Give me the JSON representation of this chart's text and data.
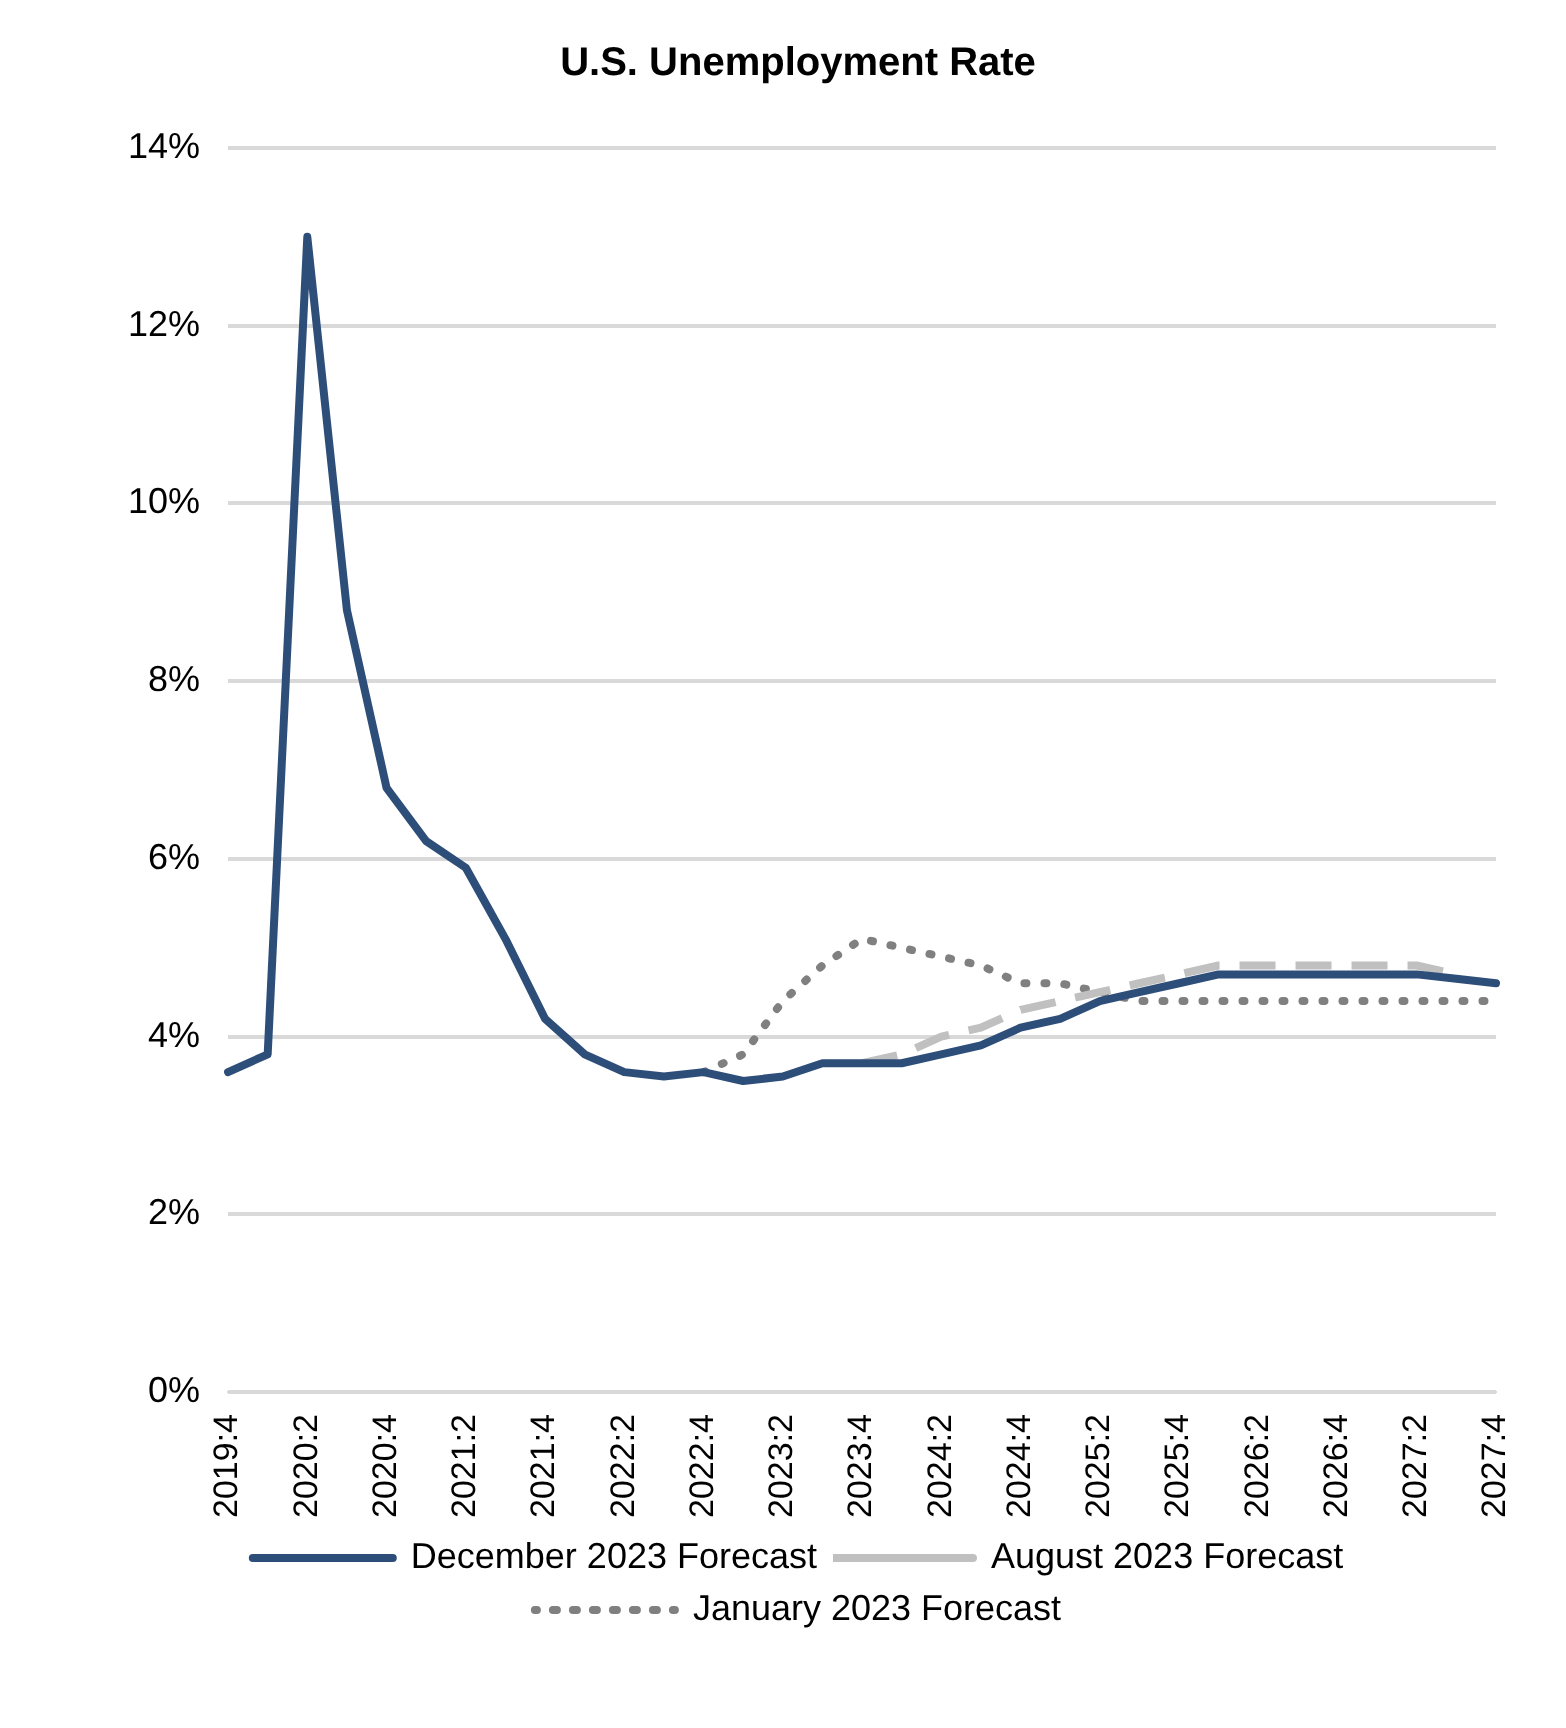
{
  "chart_data": {
    "type": "line",
    "title": "U.S. Unemployment Rate",
    "categories": [
      "2019:4",
      null,
      "2020:2",
      null,
      "2020:4",
      null,
      "2021:2",
      null,
      "2021:4",
      null,
      "2022:2",
      null,
      "2022:4",
      null,
      "2023:2",
      null,
      "2023:4",
      null,
      "2024:2",
      null,
      "2024:4",
      null,
      "2025:2",
      null,
      "2025:4",
      null,
      "2026:2",
      null,
      "2026:4",
      null,
      "2027:2",
      null,
      "2027:4"
    ],
    "series": [
      {
        "name": "January 2023 Forecast",
        "color": "#808080",
        "line_style": "dotted",
        "values": [
          null,
          null,
          null,
          null,
          null,
          null,
          null,
          null,
          null,
          null,
          null,
          null,
          3.6,
          3.8,
          4.4,
          4.8,
          5.1,
          5.0,
          4.9,
          4.8,
          4.6,
          4.6,
          4.5,
          4.4,
          4.4,
          4.4,
          4.4,
          4.4,
          4.4,
          4.4,
          4.4,
          4.4,
          4.4
        ]
      },
      {
        "name": "August 2023 Forecast",
        "color": "#c0c0c0",
        "line_style": "dashed",
        "values": [
          null,
          null,
          null,
          null,
          null,
          null,
          null,
          null,
          null,
          null,
          null,
          null,
          null,
          null,
          null,
          null,
          3.7,
          3.8,
          4.0,
          4.1,
          4.3,
          4.4,
          4.5,
          4.6,
          4.7,
          4.8,
          4.8,
          4.8,
          4.8,
          4.8,
          4.8,
          4.7,
          null
        ]
      },
      {
        "name": "December 2023 Forecast",
        "color": "#2e4e7a",
        "line_style": "solid",
        "values": [
          3.6,
          3.8,
          13.0,
          8.8,
          6.8,
          6.2,
          5.9,
          5.1,
          4.2,
          3.8,
          3.6,
          3.55,
          3.6,
          3.5,
          3.55,
          3.7,
          3.7,
          3.7,
          3.8,
          3.9,
          4.1,
          4.2,
          4.4,
          4.5,
          4.6,
          4.7,
          4.7,
          4.7,
          4.7,
          4.7,
          4.7,
          4.65,
          4.6
        ]
      }
    ],
    "ylim": [
      0,
      14
    ],
    "yticks": [
      {
        "value": 0,
        "label": "0%"
      },
      {
        "value": 2,
        "label": "2%"
      },
      {
        "value": 4,
        "label": "4%"
      },
      {
        "value": 6,
        "label": "6%"
      },
      {
        "value": 8,
        "label": "8%"
      },
      {
        "value": 10,
        "label": "10%"
      },
      {
        "value": 12,
        "label": "12%"
      },
      {
        "value": 14,
        "label": "14%"
      }
    ],
    "grid": "y",
    "legend": "bottom",
    "marker": "none"
  }
}
